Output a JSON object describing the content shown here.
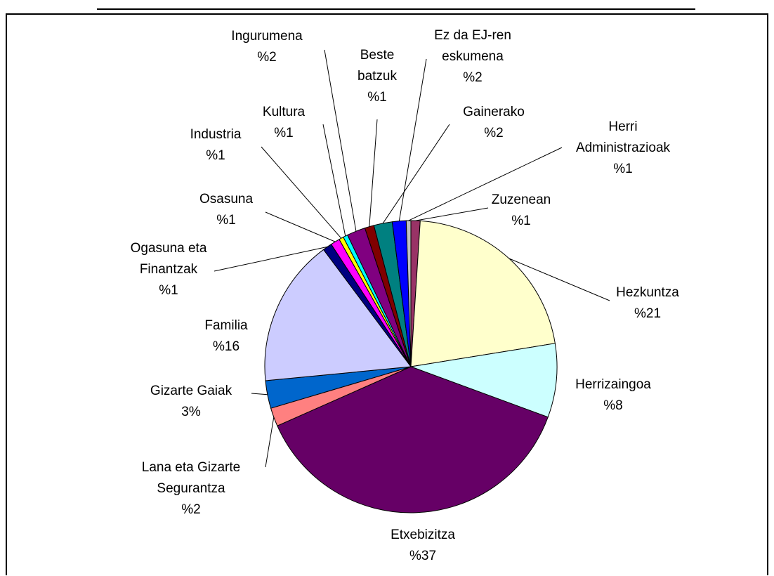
{
  "chart_data": {
    "type": "pie",
    "legend": "none",
    "slices": [
      {
        "name": "Zuzenean",
        "value": 1,
        "value_label": "%1",
        "color": "#993366",
        "lines": [
          "Zuzenean"
        ]
      },
      {
        "name": "Hezkuntza",
        "value": 21,
        "value_label": "%21",
        "color": "#FFFFCC",
        "lines": [
          "Hezkuntza"
        ]
      },
      {
        "name": "Herrizaingoa",
        "value": 8,
        "value_label": "%8",
        "color": "#CCFFFF",
        "lines": [
          "Herrizaingoa"
        ]
      },
      {
        "name": "Etxebizitza",
        "value": 37,
        "value_label": "%37",
        "color": "#660066",
        "lines": [
          "Etxebizitza"
        ]
      },
      {
        "name": "Lana eta Gizarte Segurantza",
        "value": 2,
        "value_label": "%2",
        "color": "#FF8080",
        "lines": [
          "Lana eta Gizarte",
          "Segurantza"
        ]
      },
      {
        "name": "Gizarte Gaiak",
        "value": 3,
        "value_label": "3%",
        "color": "#0066CC",
        "lines": [
          "Gizarte Gaiak"
        ]
      },
      {
        "name": "Familia",
        "value": 16,
        "value_label": "%16",
        "color": "#CCCCFF",
        "lines": [
          "Familia"
        ]
      },
      {
        "name": "Ogasuna eta Finantzak",
        "value": 1,
        "value_label": "%1",
        "color": "#000080",
        "lines": [
          "Ogasuna eta",
          "Finantzak"
        ]
      },
      {
        "name": "Osasuna",
        "value": 1,
        "value_label": "%1",
        "color": "#FF00FF",
        "lines": [
          "Osasuna"
        ]
      },
      {
        "name": "Industria",
        "value": 0.5,
        "value_label": "%1",
        "color": "#FFFF00",
        "lines": [
          "Industria"
        ]
      },
      {
        "name": "Kultura",
        "value": 0.5,
        "value_label": "%1",
        "color": "#00FFFF",
        "lines": [
          "Kultura"
        ]
      },
      {
        "name": "Ingurumena",
        "value": 2,
        "value_label": "%2",
        "color": "#800080",
        "lines": [
          "Ingurumena"
        ]
      },
      {
        "name": "Beste batzuk",
        "value": 1,
        "value_label": "%1",
        "color": "#800000",
        "lines": [
          "Beste",
          "batzuk"
        ]
      },
      {
        "name": "Gainerako",
        "value": 2,
        "value_label": "%2",
        "color": "#008080",
        "lines": [
          "Gainerako"
        ]
      },
      {
        "name": "Ez da EJ-ren eskumena",
        "value": 1.5,
        "value_label": "%2",
        "color": "#0000FF",
        "lines": [
          "Ez da EJ-ren",
          "eskumena"
        ]
      },
      {
        "name": "Herri Administrazioak",
        "value": 0.5,
        "value_label": "%1",
        "color": "#C0C0C0",
        "lines": [
          "Herri",
          "Administrazioak"
        ]
      }
    ]
  }
}
